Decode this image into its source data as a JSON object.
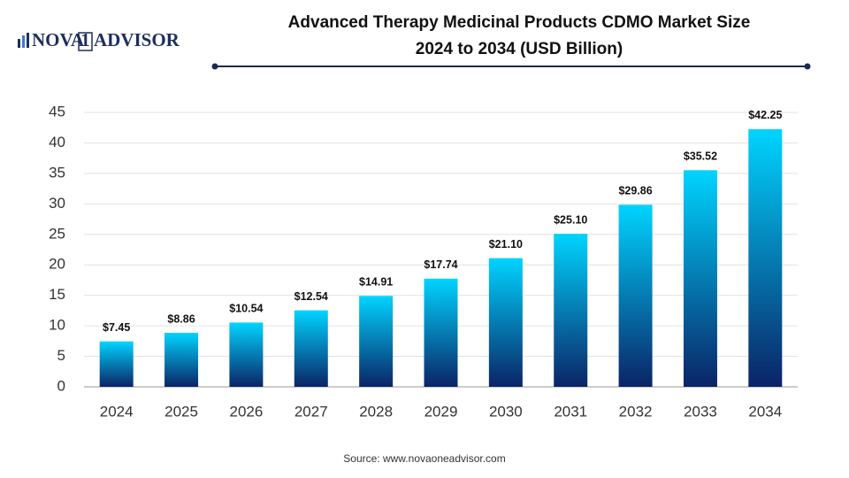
{
  "logo": [
    "NOVA",
    "1",
    "ADVISOR"
  ],
  "chart_data": {
    "type": "bar",
    "title": [
      "Advanced Therapy Medicinal Products CDMO Market Size",
      "2024 to 2034 (USD Billion)"
    ],
    "categories": [
      "2024",
      "2025",
      "2026",
      "2027",
      "2028",
      "2029",
      "2030",
      "2031",
      "2032",
      "2033",
      "2034"
    ],
    "values": [
      7.45,
      8.86,
      10.54,
      12.54,
      14.91,
      17.74,
      21.1,
      25.1,
      29.86,
      35.52,
      42.25
    ],
    "value_labels": [
      "$7.45",
      "$8.86",
      "$10.54",
      "$12.54",
      "$14.91",
      "$17.74",
      "$21.10",
      "$25.10",
      "$29.86",
      "$35.52",
      "$42.25"
    ],
    "colors": [
      "#00d4ff",
      "#0a2466"
    ],
    "ylim": [
      0,
      45
    ],
    "yticks": [
      0,
      5,
      10,
      15,
      20,
      25,
      30,
      35,
      40,
      45
    ],
    "grid": true,
    "source": "Source: www.novaoneadvisor.com"
  }
}
